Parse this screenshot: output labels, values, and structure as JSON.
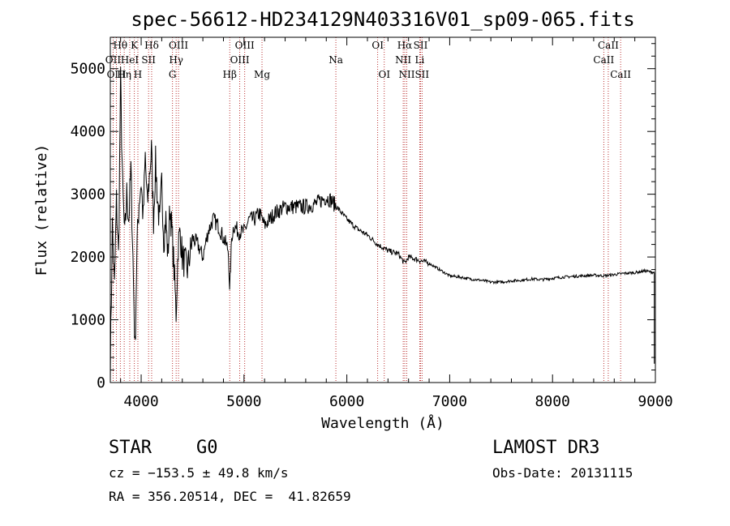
{
  "chart_data": {
    "type": "line",
    "title": "spec-56612-HD234129N403316V01_sp09-065.fits",
    "xlabel": "Wavelength (Å)",
    "ylabel": "Flux (relative)",
    "xlim": [
      3700,
      9000
    ],
    "ylim": [
      0,
      5500
    ],
    "xticks": [
      4000,
      5000,
      6000,
      7000,
      8000,
      9000
    ],
    "xtick_labels": [
      "4000",
      "5000",
      "6000",
      "7000",
      "8000",
      "9000"
    ],
    "yticks": [
      0,
      1000,
      2000,
      3000,
      4000,
      5000
    ],
    "ytick_labels": [
      "0",
      "1000",
      "2000",
      "3000",
      "4000",
      "5000"
    ],
    "series": [
      {
        "name": "flux",
        "x": [
          3700,
          3720,
          3740,
          3760,
          3780,
          3800,
          3820,
          3840,
          3860,
          3880,
          3900,
          3920,
          3940,
          3960,
          3980,
          4000,
          4020,
          4040,
          4060,
          4080,
          4100,
          4120,
          4140,
          4160,
          4180,
          4200,
          4220,
          4240,
          4260,
          4280,
          4300,
          4320,
          4340,
          4360,
          4380,
          4400,
          4450,
          4500,
          4550,
          4600,
          4650,
          4700,
          4750,
          4800,
          4850,
          4860,
          4880,
          4900,
          4950,
          5000,
          5050,
          5100,
          5150,
          5200,
          5300,
          5400,
          5500,
          5600,
          5700,
          5800,
          5850,
          5900,
          6000,
          6100,
          6200,
          6300,
          6400,
          6500,
          6560,
          6600,
          6700,
          6800,
          6900,
          7000,
          7100,
          7200,
          7300,
          7400,
          7500,
          7600,
          7700,
          7800,
          7900,
          8000,
          8100,
          8200,
          8300,
          8400,
          8500,
          8600,
          8700,
          8800,
          8900,
          8990
        ],
        "values": [
          200,
          2500,
          1500,
          2900,
          2000,
          4800,
          3100,
          2300,
          3000,
          2600,
          3400,
          2000,
          500,
          2200,
          2900,
          3200,
          2600,
          3600,
          2800,
          3300,
          3700,
          2600,
          3500,
          2900,
          2500,
          3200,
          2300,
          2600,
          2000,
          2800,
          2400,
          1800,
          1100,
          2200,
          2400,
          2000,
          1800,
          2300,
          2200,
          2000,
          2400,
          2600,
          2500,
          2300,
          2100,
          1400,
          2300,
          2500,
          2400,
          2400,
          2600,
          2600,
          2700,
          2500,
          2700,
          2800,
          2800,
          2800,
          2850,
          2950,
          2900,
          2800,
          2600,
          2450,
          2350,
          2200,
          2100,
          2050,
          1900,
          2000,
          1950,
          1900,
          1800,
          1700,
          1680,
          1650,
          1630,
          1600,
          1600,
          1620,
          1630,
          1650,
          1640,
          1660,
          1680,
          1690,
          1700,
          1710,
          1700,
          1720,
          1740,
          1750,
          1780,
          1750
        ]
      }
    ],
    "spectral_lines": [
      {
        "label": "Hθ",
        "wavelength": 3797,
        "row": 0
      },
      {
        "label": "K",
        "wavelength": 3934,
        "row": 0
      },
      {
        "label": "Hδ",
        "wavelength": 4102,
        "row": 0
      },
      {
        "label": "OIII",
        "wavelength": 4363,
        "row": 0
      },
      {
        "label": "OIII",
        "wavelength": 5007,
        "row": 0
      },
      {
        "label": "OI",
        "wavelength": 6300,
        "row": 0
      },
      {
        "label": "Hα",
        "wavelength": 6563,
        "row": 0
      },
      {
        "label": "SII",
        "wavelength": 6717,
        "row": 0
      },
      {
        "label": "CaII",
        "wavelength": 8542,
        "row": 0
      },
      {
        "label": "OII",
        "wavelength": 3727,
        "row": 1
      },
      {
        "label": "HeI",
        "wavelength": 3889,
        "row": 1
      },
      {
        "label": "SII",
        "wavelength": 4072,
        "row": 1
      },
      {
        "label": "Hγ",
        "wavelength": 4340,
        "row": 1
      },
      {
        "label": "OIII",
        "wavelength": 4959,
        "row": 1
      },
      {
        "label": "Na",
        "wavelength": 5893,
        "row": 1
      },
      {
        "label": "NII",
        "wavelength": 6548,
        "row": 1
      },
      {
        "label": "Li",
        "wavelength": 6708,
        "row": 1
      },
      {
        "label": "CaII",
        "wavelength": 8498,
        "row": 1
      },
      {
        "label": "OIII",
        "wavelength": 3760,
        "row": 2
      },
      {
        "label": "Hη",
        "wavelength": 3835,
        "row": 2
      },
      {
        "label": "H",
        "wavelength": 3968,
        "row": 2
      },
      {
        "label": "G",
        "wavelength": 4305,
        "row": 2
      },
      {
        "label": "Hβ",
        "wavelength": 4861,
        "row": 2
      },
      {
        "label": "Mg",
        "wavelength": 5175,
        "row": 2
      },
      {
        "label": "OI",
        "wavelength": 6364,
        "row": 2
      },
      {
        "label": "NII",
        "wavelength": 6583,
        "row": 2
      },
      {
        "label": "SII",
        "wavelength": 6731,
        "row": 2
      },
      {
        "label": "CaII",
        "wavelength": 8662,
        "row": 2
      }
    ]
  },
  "info": {
    "class": "STAR",
    "subclass": "G0",
    "survey": "LAMOST DR3",
    "cz": "cz = −153.5 ± 49.8 km/s",
    "obs_date": "Obs-Date: 20131115",
    "radec": "RA = 356.20514, DEC =  41.82659"
  },
  "colors": {
    "line_marker": "#aa0000",
    "axes": "#000000",
    "spectrum": "#000000"
  }
}
